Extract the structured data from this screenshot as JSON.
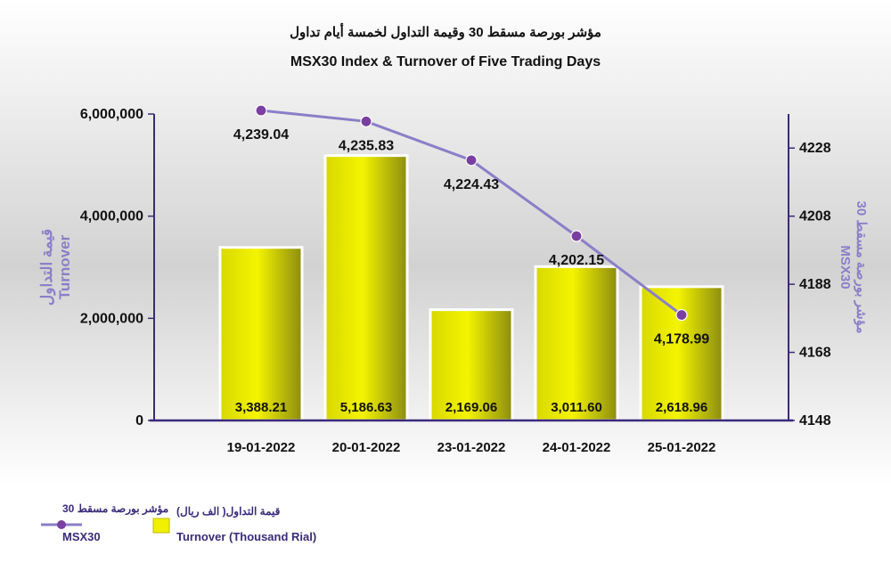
{
  "chart_data": {
    "type": "bar+line",
    "title_ar": "مؤشر بورصة مسقط 30 وقيمة التداول لخمسة أيام تداول",
    "title_en": "MSX30 Index & Turnover of Five Trading Days",
    "categories": [
      "19-01-2022",
      "20-01-2022",
      "23-01-2022",
      "24-01-2022",
      "25-01-2022"
    ],
    "left_axis": {
      "label_ar": "قيمة التداول",
      "label_en": "Turnover",
      "ylim": [
        0,
        6000000
      ],
      "ticks": [
        "0",
        "2,000,000",
        "4,000,000",
        "6,000,000"
      ],
      "tick_values": [
        0,
        2000000,
        4000000,
        6000000
      ]
    },
    "right_axis": {
      "label_ar": "مؤشر بورصة مسقط 30",
      "label_en": "MSX30",
      "ylim": [
        4148,
        4238
      ],
      "ticks": [
        "4148",
        "4168",
        "4188",
        "4208",
        "4228"
      ],
      "tick_values": [
        4148,
        4168,
        4188,
        4208,
        4228
      ]
    },
    "series": [
      {
        "name_ar": "قيمة التداول( الف ريال)",
        "name_en": "Turnover (Thousand Rial)",
        "type": "bar",
        "axis": "left",
        "color": "#e8e800",
        "values": [
          3388210,
          5186630,
          2169060,
          3011600,
          2618960
        ],
        "labels": [
          "3,388.21",
          "5,186.63",
          "2,169.06",
          "3,011.60",
          "2,618.96"
        ]
      },
      {
        "name_ar": "مؤشر بورصة مسقط 30",
        "name_en": "MSX30",
        "type": "line",
        "axis": "right",
        "color": "#8a7fc8",
        "marker_color": "#7a3fa0",
        "values": [
          4239.04,
          4235.83,
          4224.43,
          4202.15,
          4178.99
        ],
        "labels": [
          "4,239.04",
          "4,235.83",
          "4,224.43",
          "4,202.15",
          "4,178.99"
        ]
      }
    ],
    "legend_position": "bottom-left",
    "grid": false
  }
}
